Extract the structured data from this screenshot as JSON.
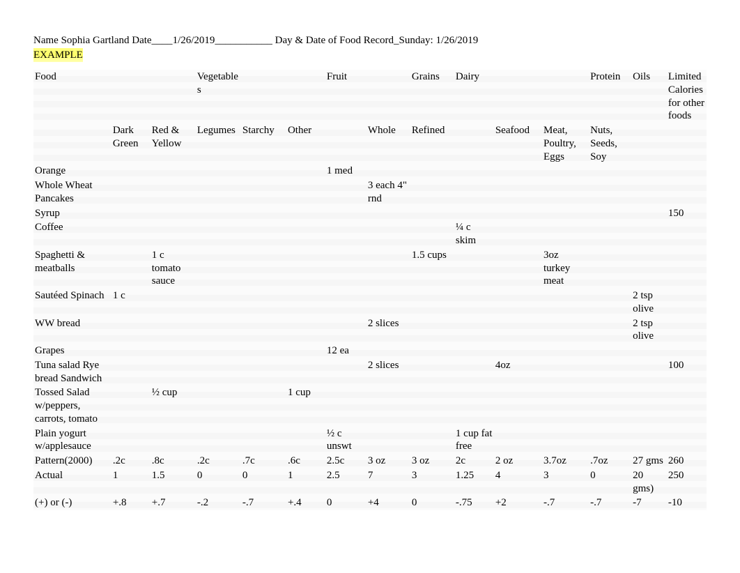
{
  "header": {
    "name_label": "Name ",
    "name_value": "Sophia Gartland",
    "date_label": "Date____",
    "date_value": "1/26/2019___________",
    "day_label": "Day & Date of Food Record_",
    "day_value": "Sunday: 1/26/2019",
    "example_label": "EXAMPLE"
  },
  "cols": {
    "main": [
      "Food",
      "",
      "",
      "Vegetables",
      "",
      "",
      "Fruit",
      "",
      "Grains",
      "Dairy",
      "",
      "",
      "Protein",
      "",
      "Oils",
      "Limited Calories for other foods"
    ],
    "sub": [
      "",
      "Dark Green",
      "Red & Yellow",
      "Legumes",
      "Starchy",
      "Other",
      "",
      "Whole",
      "Refined",
      "",
      "Seafood",
      "Meat, Poultry, Eggs",
      "Nuts, Seeds, Soy",
      "",
      ""
    ]
  },
  "rows": [
    {
      "cells": [
        "Orange",
        "",
        "",
        "",
        "",
        "",
        "1 med",
        "",
        "",
        "",
        "",
        "",
        "",
        "",
        "",
        ""
      ]
    },
    {
      "cells": [
        "Whole Wheat Pancakes",
        "",
        "",
        "",
        "",
        "",
        "",
        "3 each 4\" rnd",
        "",
        "",
        "",
        "",
        "",
        "",
        "",
        ""
      ]
    },
    {
      "cells": [
        "Syrup",
        "",
        "",
        "",
        "",
        "",
        "",
        "",
        "",
        "",
        "",
        "",
        "",
        "",
        "",
        "150"
      ]
    },
    {
      "cells": [
        "Coffee",
        "",
        "",
        "",
        "",
        "",
        "",
        "",
        "",
        "¼ c skim",
        "",
        "",
        "",
        "",
        "",
        ""
      ]
    },
    {
      "cells": [
        "Spaghetti & meatballs",
        "",
        "1 c tomato sauce",
        "",
        "",
        "",
        "",
        "",
        "1.5 cups",
        "",
        "",
        "3oz turkey meat",
        "",
        "",
        "",
        ""
      ]
    },
    {
      "cells": [
        "Sautéed Spinach",
        "1 c",
        "",
        "",
        "",
        "",
        "",
        "",
        "",
        "",
        "",
        "",
        "",
        "",
        "2 tsp olive",
        ""
      ]
    },
    {
      "cells": [
        "WW bread",
        "",
        "",
        "",
        "",
        "",
        "",
        "2 slices",
        "",
        "",
        "",
        "",
        "",
        "",
        "2 tsp olive",
        ""
      ]
    },
    {
      "cells": [
        "Grapes",
        "",
        "",
        "",
        "",
        "",
        "12 ea",
        "",
        "",
        "",
        "",
        "",
        "",
        "",
        "",
        ""
      ]
    },
    {
      "cells": [
        "Tuna salad Rye bread Sandwich",
        "",
        "",
        "",
        "",
        "",
        "",
        "2 slices",
        "",
        "",
        "4oz",
        "",
        "",
        "",
        "",
        "100"
      ]
    },
    {
      "cells": [
        "Tossed Salad w/peppers, carrots, tomato",
        "",
        "½ cup",
        "",
        "",
        "1 cup",
        "",
        "",
        "",
        "",
        "",
        "",
        "",
        "",
        "",
        ""
      ]
    },
    {
      "cells": [
        "Plain yogurt w/applesauce",
        "",
        "",
        "",
        "",
        "",
        "½ c unswt",
        "",
        "",
        "1 cup fat free",
        "",
        "",
        "",
        "",
        "",
        ""
      ]
    },
    {
      "cells": [
        "Pattern(2000)",
        ".2c",
        ".8c",
        ".2c",
        ".7c",
        ".6c",
        "2.5c",
        "3 oz",
        "3 oz",
        "2c",
        "2 oz",
        "3.7oz",
        ".7oz",
        "",
        "27 gms",
        "260"
      ]
    },
    {
      "cells": [
        "Actual",
        "1",
        "1.5",
        "0",
        "0",
        "1",
        "2.5",
        "7",
        "3",
        "1.25",
        "4",
        "3",
        "0",
        "",
        "20 gms)",
        "250"
      ]
    },
    {
      "cells": [
        "(+) or (-)",
        "+.8",
        "+.7",
        "-.2",
        "-.7",
        "+.4",
        "0",
        "+4",
        "0",
        "-.75",
        "+2",
        "-.7",
        "-.7",
        "",
        "-7",
        "-10"
      ]
    }
  ],
  "style": {
    "highlight_color": "#ffff66",
    "font_family": "Times New Roman",
    "body_fontsize": 15,
    "background": "#ffffff",
    "text_color": "#000000"
  }
}
